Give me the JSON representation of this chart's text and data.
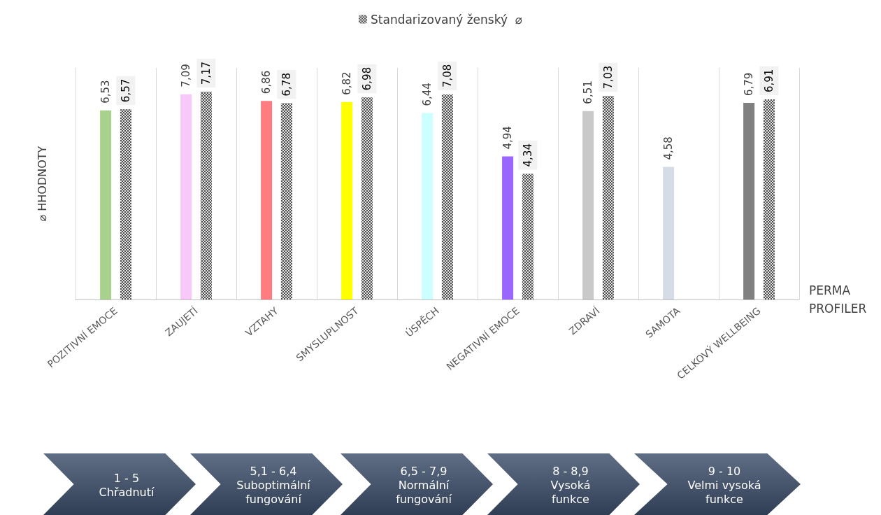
{
  "chart_data": {
    "type": "bar",
    "categories": [
      "POZITIVNÍ EMOCE",
      "ZAUJETÍ",
      "VZTAHY",
      "SMYSLUPLNOST",
      "ÚSPĚCH",
      "NEGATIVNÍ EMOCE",
      "ZDRAVÍ",
      "SAMOTA",
      "CELKOVÝ WELLBEING"
    ],
    "xlabel": "PERMA\nPROFILER",
    "ylabel": "⌀ HHODNOTY",
    "series": [
      {
        "colors": [
          "#a9d18e",
          "#f8c9f8",
          "#ff7c80",
          "#ffff00",
          "#ccffff",
          "#9966ff",
          "#c9c9c9",
          "#d6dce5",
          "#808080"
        ],
        "values": [
          6.53,
          7.09,
          6.86,
          6.82,
          6.44,
          4.94,
          6.51,
          4.58,
          6.79
        ],
        "value_labels": [
          "6,53",
          "7,09",
          "6,86",
          "6,82",
          "6,44",
          "4,94",
          "6,51",
          "4,58",
          "6,79"
        ]
      },
      {
        "name": "Standarizovaný ženský  ⌀",
        "color": "#4d4d4d",
        "values": [
          6.57,
          7.17,
          6.78,
          6.98,
          7.08,
          4.34,
          7.03,
          null,
          6.91
        ],
        "value_labels": [
          "6,57",
          "7,17",
          "6,78",
          "6,98",
          "7,08",
          "4,34",
          "7,03",
          null,
          "6,91"
        ]
      }
    ],
    "grid": "x",
    "legend": "top",
    "annotations": [
      "1 - 5\nChřadnutí",
      "5,1 - 6,4\nSuboptimální\nfungování",
      "6,5 - 7,9\nNormální\nfungování",
      "8 - 8,9\nVysoká\nfunkce",
      "9 - 10\nVelmi vysoká\nfunkce"
    ]
  }
}
